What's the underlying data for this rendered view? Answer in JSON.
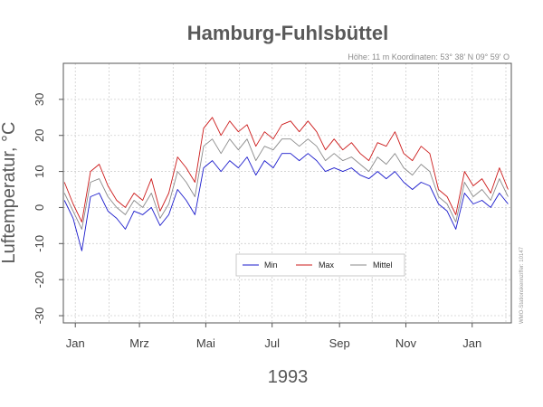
{
  "colors": {
    "min": "#1a1acc",
    "max": "#cc1a1a",
    "mittel": "#8a8a8a",
    "grid": "#cfcfcf",
    "frame": "#555555"
  },
  "chart_data": {
    "type": "line",
    "title": "Hamburg-Fuhlsbüttel",
    "subtitle": "Höhe: 11 m   Koordinaten: 53° 38' N  09° 59' O",
    "xlabel": "1993",
    "ylabel": "Luftemperatur, °C",
    "side_note": "WMO-Stationskennziffer: 10147",
    "ylim": [
      -32,
      40
    ],
    "yticks": [
      -30,
      -20,
      -10,
      0,
      10,
      20,
      30
    ],
    "x_unit": "day of year 1993 (1 = 1 Jan 1993)",
    "xlim": [
      -10,
      402
    ],
    "xticks": [
      {
        "day": 1,
        "label": "Jan"
      },
      {
        "day": 60,
        "label": "Mrz"
      },
      {
        "day": 121,
        "label": "Mai"
      },
      {
        "day": 182,
        "label": "Jul"
      },
      {
        "day": 244,
        "label": "Sep"
      },
      {
        "day": 305,
        "label": "Nov"
      },
      {
        "day": 366,
        "label": "Jan"
      }
    ],
    "minor_grid_days": [
      -31,
      32,
      91,
      152,
      213,
      274,
      335,
      397
    ],
    "legend": {
      "placement": "center",
      "entries": [
        "Min",
        "Max",
        "Mittel"
      ]
    },
    "x": [
      -9,
      -1,
      7,
      15,
      23,
      31,
      39,
      47,
      55,
      63,
      71,
      79,
      87,
      95,
      103,
      111,
      119,
      127,
      135,
      143,
      151,
      159,
      167,
      175,
      183,
      191,
      199,
      207,
      215,
      223,
      231,
      239,
      247,
      255,
      263,
      271,
      279,
      287,
      295,
      303,
      311,
      319,
      327,
      335,
      343,
      351,
      359,
      367,
      375,
      383,
      391,
      399
    ],
    "series": [
      {
        "name": "Max",
        "values": [
          7,
          1,
          -4,
          10,
          12,
          6,
          2,
          0,
          4,
          2,
          8,
          -1,
          4,
          14,
          11,
          7,
          22,
          25,
          20,
          24,
          21,
          23,
          17,
          21,
          19,
          23,
          24,
          21,
          24,
          21,
          16,
          19,
          16,
          18,
          15,
          13,
          18,
          17,
          21,
          15,
          13,
          17,
          15,
          5,
          3,
          -2,
          10,
          6,
          8,
          4,
          11,
          5
        ]
      },
      {
        "name": "Mittel",
        "values": [
          4,
          -1,
          -6,
          7,
          8,
          3,
          0,
          -2,
          2,
          0,
          4,
          -3,
          1,
          10,
          7,
          3,
          17,
          19,
          15,
          19,
          16,
          19,
          13,
          17,
          16,
          19,
          19,
          17,
          19,
          17,
          13,
          15,
          13,
          14,
          12,
          10,
          14,
          12,
          15,
          11,
          9,
          12,
          10,
          3,
          1,
          -4,
          7,
          3,
          5,
          2,
          8,
          3
        ]
      },
      {
        "name": "Min",
        "values": [
          2,
          -3,
          -12,
          3,
          4,
          -1,
          -3,
          -6,
          -1,
          -2,
          0,
          -5,
          -2,
          5,
          2,
          -2,
          11,
          13,
          10,
          13,
          11,
          14,
          9,
          13,
          11,
          15,
          15,
          13,
          15,
          13,
          10,
          11,
          10,
          11,
          9,
          8,
          10,
          8,
          10,
          7,
          5,
          7,
          6,
          1,
          -1,
          -6,
          4,
          1,
          2,
          0,
          4,
          1
        ]
      }
    ]
  }
}
